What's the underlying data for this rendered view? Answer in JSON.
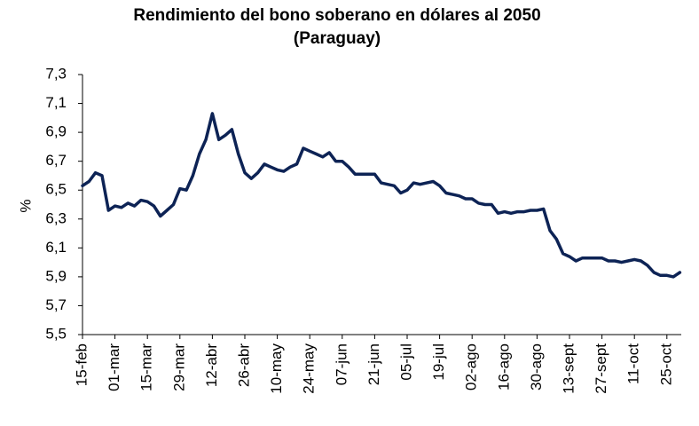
{
  "chart_data": {
    "type": "line",
    "title": "Rendimiento del bono soberano en dólares al 2050",
    "subtitle": "(Paraguay)",
    "ylabel": "%",
    "categories": [
      "15-feb",
      null,
      null,
      null,
      null,
      "01-mar",
      null,
      null,
      null,
      null,
      "15-mar",
      null,
      null,
      null,
      null,
      "29-mar",
      null,
      null,
      null,
      null,
      "12-abr",
      null,
      null,
      null,
      null,
      "26-abr",
      null,
      null,
      null,
      null,
      "10-may",
      null,
      null,
      null,
      null,
      "24-may",
      null,
      null,
      null,
      null,
      "07-jun",
      null,
      null,
      null,
      null,
      "21-jun",
      null,
      null,
      null,
      null,
      "05-jul",
      null,
      null,
      null,
      null,
      "19-jul",
      null,
      null,
      null,
      null,
      "02-ago",
      null,
      null,
      null,
      null,
      "16-ago",
      null,
      null,
      null,
      null,
      "30-ago",
      null,
      null,
      null,
      null,
      "13-sept",
      null,
      null,
      null,
      null,
      "27-sept",
      null,
      null,
      null,
      null,
      "11-oct",
      null,
      null,
      null,
      null,
      "25-oct",
      null,
      null
    ],
    "series": [
      {
        "name": "Rendimiento",
        "color": "#0d2355",
        "values": [
          6.53,
          6.56,
          6.62,
          6.6,
          6.36,
          6.39,
          6.38,
          6.41,
          6.39,
          6.43,
          6.42,
          6.39,
          6.32,
          6.36,
          6.4,
          6.51,
          6.5,
          6.6,
          6.75,
          6.85,
          7.03,
          6.85,
          6.88,
          6.92,
          6.75,
          6.62,
          6.58,
          6.62,
          6.68,
          6.66,
          6.64,
          6.63,
          6.66,
          6.68,
          6.79,
          6.77,
          6.75,
          6.73,
          6.76,
          6.7,
          6.7,
          6.66,
          6.61,
          6.61,
          6.61,
          6.61,
          6.55,
          6.54,
          6.53,
          6.48,
          6.5,
          6.55,
          6.54,
          6.55,
          6.56,
          6.53,
          6.48,
          6.47,
          6.46,
          6.44,
          6.44,
          6.41,
          6.4,
          6.4,
          6.34,
          6.35,
          6.34,
          6.35,
          6.35,
          6.36,
          6.36,
          6.37,
          6.22,
          6.16,
          6.06,
          6.04,
          6.01,
          6.03,
          6.03,
          6.03,
          6.03,
          6.01,
          6.01,
          6.0,
          6.01,
          6.02,
          6.01,
          5.98,
          5.93,
          5.91,
          5.91,
          5.9,
          5.93
        ]
      }
    ],
    "ylim": [
      5.5,
      7.3
    ],
    "yticks": [
      {
        "value": 5.5,
        "label": "5,5"
      },
      {
        "value": 5.7,
        "label": "5,7"
      },
      {
        "value": 5.9,
        "label": "5,9"
      },
      {
        "value": 6.1,
        "label": "6,1"
      },
      {
        "value": 6.3,
        "label": "6,3"
      },
      {
        "value": 6.5,
        "label": "6,5"
      },
      {
        "value": 6.7,
        "label": "6,7"
      },
      {
        "value": 6.9,
        "label": "6,9"
      },
      {
        "value": 7.1,
        "label": "7,1"
      },
      {
        "value": 7.3,
        "label": "7,3"
      }
    ],
    "grid": false
  }
}
